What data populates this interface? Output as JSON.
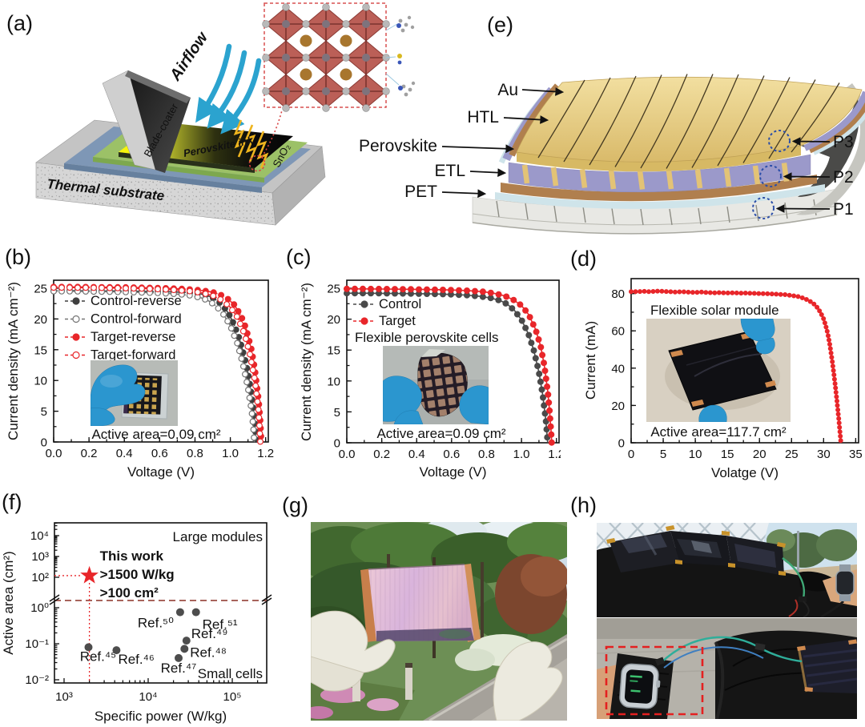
{
  "panels": {
    "a": {
      "label": "(a)",
      "airflow": "Airflow",
      "blade_coater": "Blade-coater",
      "perovskite_ink": "Perovskite ink",
      "sno2": "SnO₂",
      "thermal_substrate": "Thermal substrate"
    },
    "b": {
      "label": "(b)"
    },
    "c": {
      "label": "(c)"
    },
    "d": {
      "label": "(d)"
    },
    "e": {
      "label": "(e)",
      "layers": [
        "Au",
        "HTL",
        "Perovskite",
        "ETL",
        "PET"
      ],
      "points": [
        "P3",
        "P2",
        "P1"
      ]
    },
    "f": {
      "label": "(f)"
    },
    "g": {
      "label": "(g)"
    },
    "h": {
      "label": "(h)"
    }
  },
  "colors": {
    "red": "#e8262a",
    "control_dark": "#3f3f3f",
    "control_light": "#757575",
    "airflow_blue": "#2ba3cf",
    "glove_blue": "#2b96cf",
    "gold": "#e3c376",
    "break_line": "#9c4f46"
  },
  "chart_data": [
    {
      "id": "b",
      "type": "line",
      "xlabel": "Voltage (V)",
      "ylabel": "Current density (mA cm⁻²)",
      "xlim": [
        0,
        1.215
      ],
      "ylim": [
        0,
        26.3
      ],
      "xticks": [
        0.0,
        0.2,
        0.4,
        0.6,
        0.8,
        1.0,
        1.2
      ],
      "yticks": [
        0,
        5,
        10,
        15,
        20,
        25
      ],
      "annotation": "Active area=0.09 cm²",
      "series": [
        {
          "name": "Control-reverse",
          "color": "#3f3f3f",
          "lcolor": "#4f4f4f",
          "marker": "filled",
          "points": [
            [
              0,
              24.6
            ],
            [
              0.06,
              24.6
            ],
            [
              0.12,
              24.6
            ],
            [
              0.18,
              24.58
            ],
            [
              0.24,
              24.57
            ],
            [
              0.3,
              24.55
            ],
            [
              0.36,
              24.54
            ],
            [
              0.42,
              24.52
            ],
            [
              0.48,
              24.5
            ],
            [
              0.54,
              24.48
            ],
            [
              0.6,
              24.45
            ],
            [
              0.66,
              24.42
            ],
            [
              0.72,
              24.36
            ],
            [
              0.78,
              24.25
            ],
            [
              0.82,
              24.12
            ],
            [
              0.86,
              23.9
            ],
            [
              0.9,
              23.45
            ],
            [
              0.93,
              22.9
            ],
            [
              0.96,
              22.1
            ],
            [
              0.99,
              20.9
            ],
            [
              1.02,
              19.2
            ],
            [
              1.05,
              16.9
            ],
            [
              1.08,
              13.8
            ],
            [
              1.1,
              11.2
            ],
            [
              1.12,
              7.6
            ],
            [
              1.13,
              5.4
            ],
            [
              1.14,
              2.6
            ],
            [
              1.145,
              0
            ]
          ]
        },
        {
          "name": "Control-forward",
          "color": "#757575",
          "lcolor": "#4f4f4f",
          "marker": "open",
          "points": [
            [
              0,
              24.5
            ],
            [
              0.08,
              24.5
            ],
            [
              0.16,
              24.48
            ],
            [
              0.24,
              24.45
            ],
            [
              0.32,
              24.42
            ],
            [
              0.4,
              24.38
            ],
            [
              0.48,
              24.33
            ],
            [
              0.56,
              24.26
            ],
            [
              0.64,
              24.16
            ],
            [
              0.72,
              24.0
            ],
            [
              0.78,
              23.8
            ],
            [
              0.84,
              23.4
            ],
            [
              0.88,
              22.9
            ],
            [
              0.92,
              22.1
            ],
            [
              0.96,
              20.8
            ],
            [
              1.0,
              18.9
            ],
            [
              1.04,
              16.0
            ],
            [
              1.07,
              12.8
            ],
            [
              1.1,
              8.8
            ],
            [
              1.12,
              5.2
            ],
            [
              1.13,
              2.6
            ],
            [
              1.135,
              0
            ]
          ]
        },
        {
          "name": "Target-reverse",
          "color": "#e8262a",
          "lcolor": "#e8262a",
          "marker": "filled",
          "points": [
            [
              0,
              25.2
            ],
            [
              0.08,
              25.2
            ],
            [
              0.16,
              25.2
            ],
            [
              0.24,
              25.18
            ],
            [
              0.32,
              25.16
            ],
            [
              0.4,
              25.14
            ],
            [
              0.48,
              25.1
            ],
            [
              0.56,
              25.06
            ],
            [
              0.64,
              25.0
            ],
            [
              0.72,
              24.9
            ],
            [
              0.8,
              24.75
            ],
            [
              0.86,
              24.55
            ],
            [
              0.9,
              24.35
            ],
            [
              0.94,
              24.0
            ],
            [
              0.98,
              23.4
            ],
            [
              1.02,
              22.4
            ],
            [
              1.06,
              20.6
            ],
            [
              1.09,
              18.4
            ],
            [
              1.12,
              15.0
            ],
            [
              1.14,
              11.6
            ],
            [
              1.16,
              6.8
            ],
            [
              1.17,
              3.2
            ],
            [
              1.175,
              0
            ]
          ]
        },
        {
          "name": "Target-forward",
          "color": "#e8262a",
          "lcolor": "#e8262a",
          "marker": "open",
          "points": [
            [
              0,
              25.1
            ],
            [
              0.1,
              25.1
            ],
            [
              0.2,
              25.08
            ],
            [
              0.3,
              25.05
            ],
            [
              0.4,
              25.0
            ],
            [
              0.5,
              24.95
            ],
            [
              0.6,
              24.85
            ],
            [
              0.7,
              24.7
            ],
            [
              0.78,
              24.5
            ],
            [
              0.84,
              24.25
            ],
            [
              0.9,
              23.8
            ],
            [
              0.95,
              23.1
            ],
            [
              1.0,
              21.9
            ],
            [
              1.04,
              20.3
            ],
            [
              1.08,
              17.6
            ],
            [
              1.11,
              14.4
            ],
            [
              1.14,
              9.8
            ],
            [
              1.16,
              5.0
            ],
            [
              1.165,
              2.4
            ],
            [
              1.17,
              0
            ]
          ]
        }
      ]
    },
    {
      "id": "c",
      "type": "line",
      "xlabel": "Voltage (V)",
      "ylabel": "Current density (mA cm⁻²)",
      "xlim": [
        0,
        1.215
      ],
      "ylim": [
        0,
        26.3
      ],
      "xticks": [
        0.0,
        0.2,
        0.4,
        0.6,
        0.8,
        1.0,
        1.2
      ],
      "yticks": [
        0,
        5,
        10,
        15,
        20,
        25
      ],
      "subtitle": "Flexible perovskite cells",
      "annotation": "Active area=0.09 cm²",
      "series": [
        {
          "name": "Control",
          "color": "#4a4a4a",
          "lcolor": "#4f4f4f",
          "marker": "filled",
          "points": [
            [
              0,
              24.2
            ],
            [
              0.1,
              24.2
            ],
            [
              0.2,
              24.18
            ],
            [
              0.3,
              24.15
            ],
            [
              0.4,
              24.12
            ],
            [
              0.5,
              24.08
            ],
            [
              0.6,
              24.0
            ],
            [
              0.68,
              23.9
            ],
            [
              0.76,
              23.7
            ],
            [
              0.82,
              23.45
            ],
            [
              0.88,
              23.0
            ],
            [
              0.92,
              22.4
            ],
            [
              0.96,
              21.4
            ],
            [
              1.0,
              19.9
            ],
            [
              1.04,
              17.6
            ],
            [
              1.07,
              15.0
            ],
            [
              1.1,
              11.4
            ],
            [
              1.12,
              8.0
            ],
            [
              1.14,
              3.6
            ],
            [
              1.15,
              0
            ]
          ]
        },
        {
          "name": "Target",
          "color": "#e8262a",
          "lcolor": "#e8262a",
          "marker": "filled",
          "points": [
            [
              0,
              24.9
            ],
            [
              0.1,
              24.9
            ],
            [
              0.2,
              24.88
            ],
            [
              0.3,
              24.85
            ],
            [
              0.4,
              24.82
            ],
            [
              0.5,
              24.78
            ],
            [
              0.6,
              24.72
            ],
            [
              0.7,
              24.6
            ],
            [
              0.78,
              24.45
            ],
            [
              0.84,
              24.2
            ],
            [
              0.9,
              23.8
            ],
            [
              0.95,
              23.2
            ],
            [
              1.0,
              22.2
            ],
            [
              1.04,
              20.8
            ],
            [
              1.08,
              18.4
            ],
            [
              1.11,
              15.6
            ],
            [
              1.13,
              12.6
            ],
            [
              1.15,
              8.4
            ],
            [
              1.16,
              5.4
            ],
            [
              1.17,
              1.6
            ],
            [
              1.173,
              0
            ]
          ]
        }
      ]
    },
    {
      "id": "d",
      "type": "line",
      "xlabel": "Volatge (V)",
      "ylabel": "Current (mA)",
      "xlim": [
        0,
        35.45
      ],
      "ylim": [
        0,
        88
      ],
      "xticks": [
        0,
        5,
        10,
        15,
        20,
        25,
        30,
        35
      ],
      "yticks": [
        0,
        20,
        40,
        60,
        80
      ],
      "subtitle": "Flexible solar module",
      "annotation": "Active area=117.7 cm²",
      "series": [
        {
          "name": "Flexible solar module",
          "color": "#e8262a",
          "lcolor": "#e8262a",
          "marker": "filled",
          "points": [
            [
              0,
              81
            ],
            [
              1,
              81
            ],
            [
              2,
              81.2
            ],
            [
              3,
              81
            ],
            [
              4,
              81.3
            ],
            [
              5,
              81.2
            ],
            [
              6,
              81
            ],
            [
              7,
              80.8
            ],
            [
              8,
              81
            ],
            [
              9,
              80.7
            ],
            [
              10,
              80.6
            ],
            [
              11,
              80.8
            ],
            [
              12,
              80.5
            ],
            [
              13,
              80.4
            ],
            [
              14,
              80.5
            ],
            [
              15,
              80.3
            ],
            [
              16,
              80.4
            ],
            [
              17,
              80.2
            ],
            [
              18,
              80.3
            ],
            [
              19,
              80.1
            ],
            [
              20,
              80.0
            ],
            [
              21,
              79.9
            ],
            [
              22,
              79.8
            ],
            [
              23,
              79.6
            ],
            [
              24,
              79.4
            ],
            [
              25,
              79.0
            ],
            [
              26,
              78.4
            ],
            [
              27,
              77.4
            ],
            [
              28,
              75.6
            ],
            [
              28.5,
              74.4
            ],
            [
              29,
              72.6
            ],
            [
              29.5,
              70.0
            ],
            [
              30,
              66.4
            ],
            [
              30.3,
              63.2
            ],
            [
              30.6,
              59.2
            ],
            [
              30.9,
              54.0
            ],
            [
              31.1,
              49.6
            ],
            [
              31.3,
              44.8
            ],
            [
              31.5,
              39.6
            ],
            [
              31.7,
              34.0
            ],
            [
              31.9,
              28.0
            ],
            [
              32.1,
              21.6
            ],
            [
              32.3,
              14.8
            ],
            [
              32.5,
              7.6
            ],
            [
              32.65,
              2.0
            ],
            [
              32.7,
              0
            ]
          ]
        }
      ]
    },
    {
      "id": "f",
      "type": "scatter",
      "xlabel": "Specific power (W/kg)",
      "ylabel": "Active area (cm²)",
      "xscale": "log",
      "yscale": "log-broken",
      "xticks": [
        1000,
        10000,
        100000
      ],
      "xtick_labels": [
        "10³",
        "10⁴",
        "10⁵"
      ],
      "ytick_upper": [
        10000,
        1000,
        100
      ],
      "ytick_upper_labels": [
        "10⁴",
        "10³",
        "10²"
      ],
      "ytick_lower": [
        1,
        0.1,
        0.01
      ],
      "ytick_lower_labels": [
        "10⁰",
        "10⁻¹",
        "10⁻²"
      ],
      "regions": {
        "upper": "Large modules",
        "lower": "Small cells"
      },
      "this_work": {
        "label": "This work",
        "notes": [
          ">1500 W/kg",
          ">100 cm²"
        ],
        "x": 2000,
        "y": 120
      },
      "refs": [
        {
          "label": "Ref.⁴⁵",
          "x": 1950,
          "y": 0.08
        },
        {
          "label": "Ref.⁴⁶",
          "x": 4200,
          "y": 0.066
        },
        {
          "label": "Ref.⁴⁷",
          "x": 23000,
          "y": 0.04
        },
        {
          "label": "Ref.⁴⁸",
          "x": 27000,
          "y": 0.072
        },
        {
          "label": "Ref.⁴⁹",
          "x": 28500,
          "y": 0.122
        },
        {
          "label": "Ref.⁵⁰",
          "x": 24000,
          "y": 0.75
        },
        {
          "label": "Ref.⁵¹",
          "x": 37000,
          "y": 0.75
        }
      ]
    }
  ]
}
